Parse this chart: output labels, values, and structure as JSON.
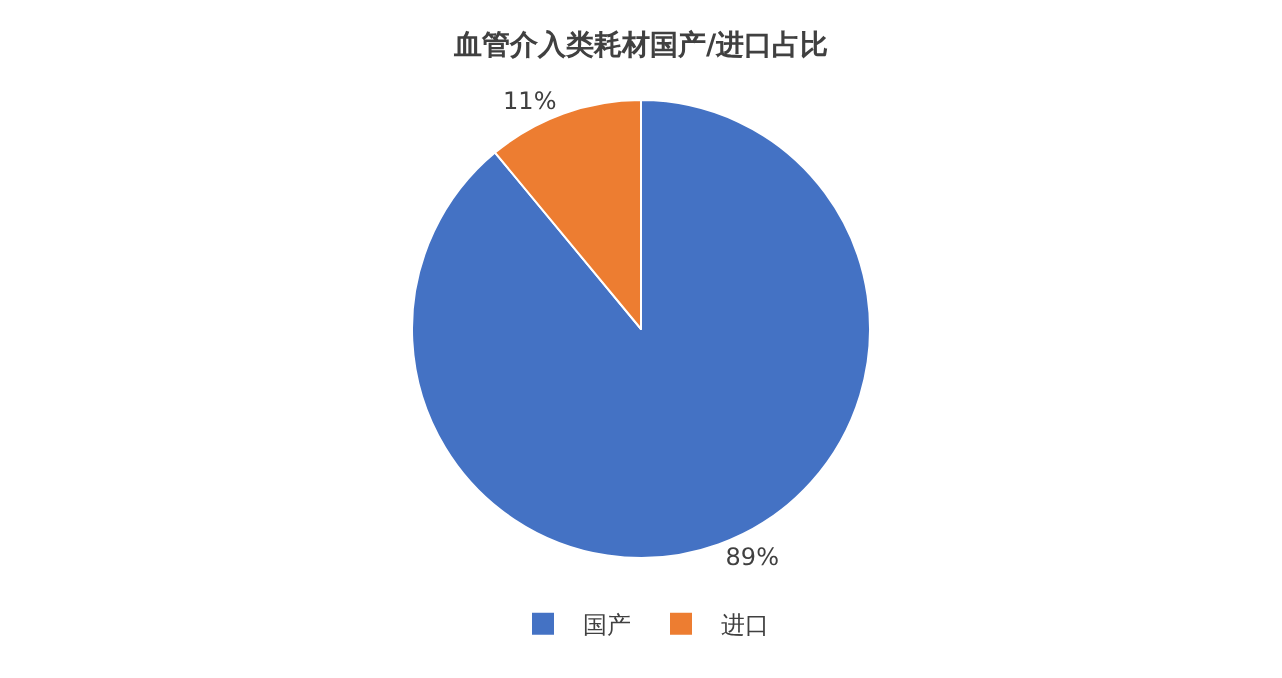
{
  "chart_data": {
    "type": "pie",
    "title": "血管介入类耗材国产/进口占比",
    "categories": [
      "国产",
      "进口"
    ],
    "values": [
      89,
      11
    ],
    "colors": [
      "#4472c4",
      "#ed7d31"
    ],
    "value_labels": [
      "89%",
      "11%"
    ],
    "legend": "bottom"
  }
}
